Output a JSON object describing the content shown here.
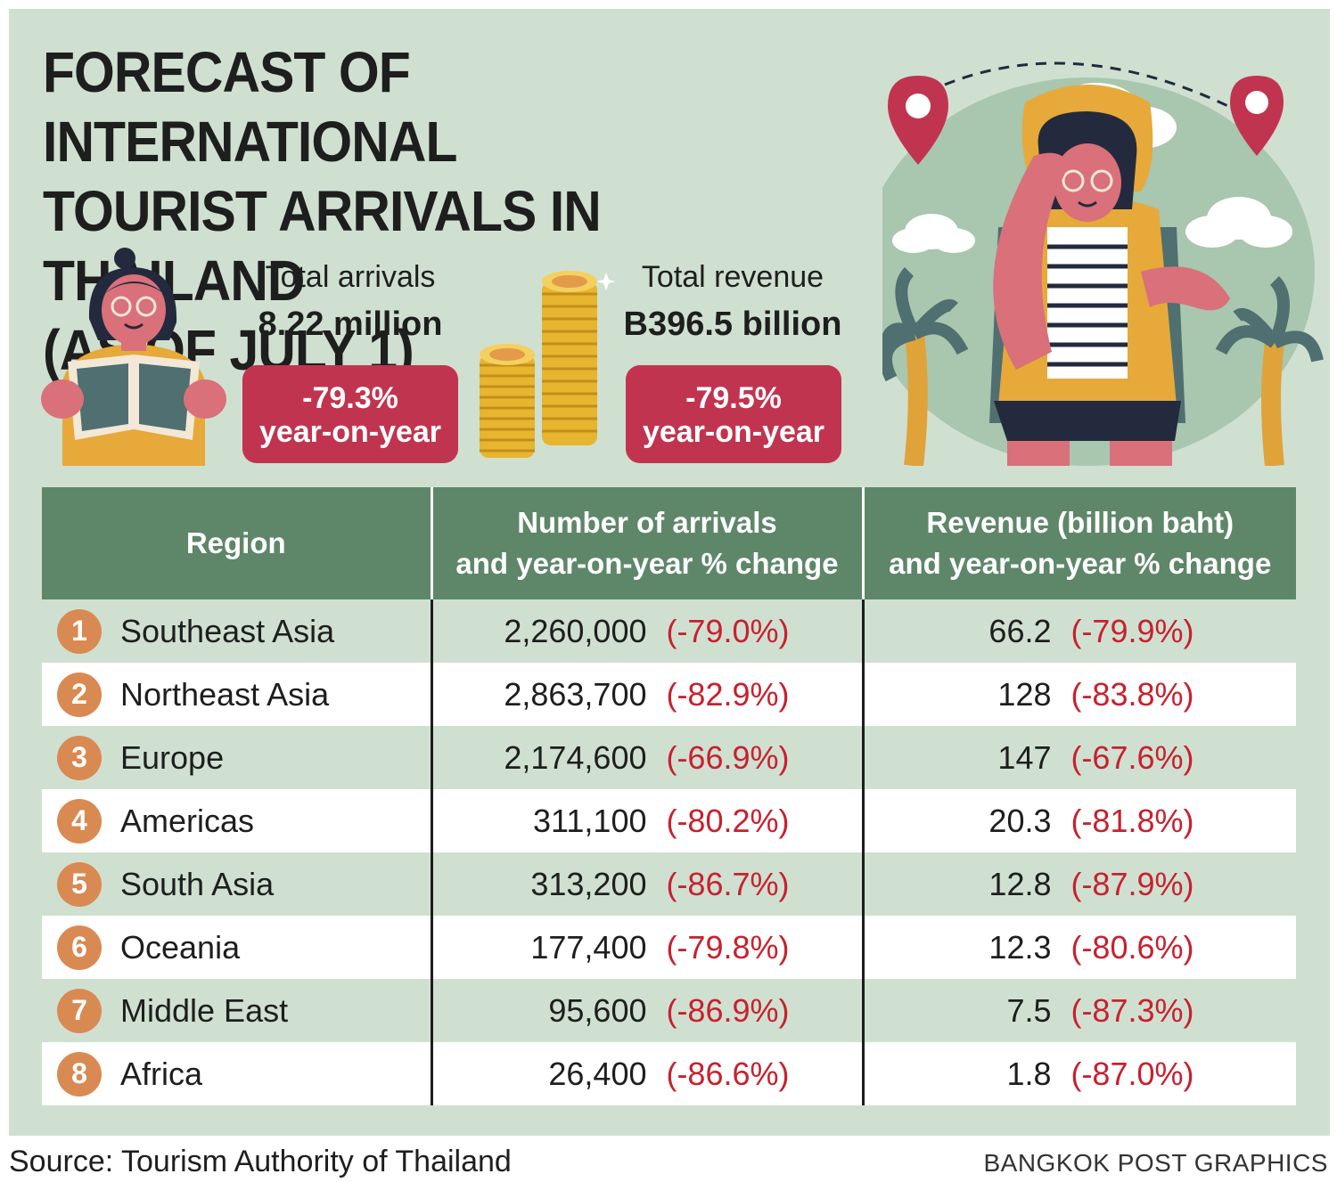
{
  "title": {
    "line1": "FORECAST OF INTERNATIONAL",
    "line2": "TOURIST ARRIVALS IN THAILAND",
    "line3": "(AS OF JULY 1)"
  },
  "arrivals": {
    "label": "Total arrivals",
    "value": "8.22 million",
    "change": "-79.3%",
    "change_note": "year-on-year"
  },
  "revenue": {
    "label": "Total revenue",
    "value": "B396.5 billion",
    "change": "-79.5%",
    "change_note": "year-on-year"
  },
  "table": {
    "headers": {
      "region": "Region",
      "arrivals_line1": "Number of arrivals",
      "arrivals_line2": "and year-on-year % change",
      "revenue_line1": "Revenue (billion baht)",
      "revenue_line2": "and year-on-year % change"
    },
    "rows": [
      {
        "rank": "1",
        "region": "Southeast Asia",
        "arrivals": "2,260,000",
        "arrivals_change": "(-79.0%)",
        "revenue": "66.2",
        "revenue_change": "(-79.9%)"
      },
      {
        "rank": "2",
        "region": "Northeast Asia",
        "arrivals": "2,863,700",
        "arrivals_change": "(-82.9%)",
        "revenue": "128",
        "revenue_change": "(-83.8%)"
      },
      {
        "rank": "3",
        "region": "Europe",
        "arrivals": "2,174,600",
        "arrivals_change": "(-66.9%)",
        "revenue": "147",
        "revenue_change": "(-67.6%)"
      },
      {
        "rank": "4",
        "region": "Americas",
        "arrivals": "311,100",
        "arrivals_change": "(-80.2%)",
        "revenue": "20.3",
        "revenue_change": "(-81.8%)"
      },
      {
        "rank": "5",
        "region": "South Asia",
        "arrivals": "313,200",
        "arrivals_change": "(-86.7%)",
        "revenue": "12.8",
        "revenue_change": "(-87.9%)"
      },
      {
        "rank": "6",
        "region": "Oceania",
        "arrivals": "177,400",
        "arrivals_change": "(-79.8%)",
        "revenue": "12.3",
        "revenue_change": "(-80.6%)"
      },
      {
        "rank": "7",
        "region": "Middle East",
        "arrivals": "95,600",
        "arrivals_change": "(-86.9%)",
        "revenue": "7.5",
        "revenue_change": "(-87.3%)"
      },
      {
        "rank": "8",
        "region": "Africa",
        "arrivals": "26,400",
        "arrivals_change": "(-86.6%)",
        "revenue": "1.8",
        "revenue_change": "(-87.0%)"
      }
    ]
  },
  "footer": {
    "source": "Source: Tourism Authority of Thailand",
    "credit": "BANGKOK POST GRAPHICS"
  },
  "colors": {
    "background": "#cfe0d1",
    "header_green": "#5e8769",
    "badge_red": "#c1344f",
    "change_red": "#c8202e",
    "rank_orange": "#d98a52"
  },
  "icons": [
    "woman-with-map-icon",
    "coin-stacks-icon",
    "traveler-with-backpack-icon",
    "location-pin-icon",
    "palm-tree-icon",
    "cloud-icon"
  ]
}
